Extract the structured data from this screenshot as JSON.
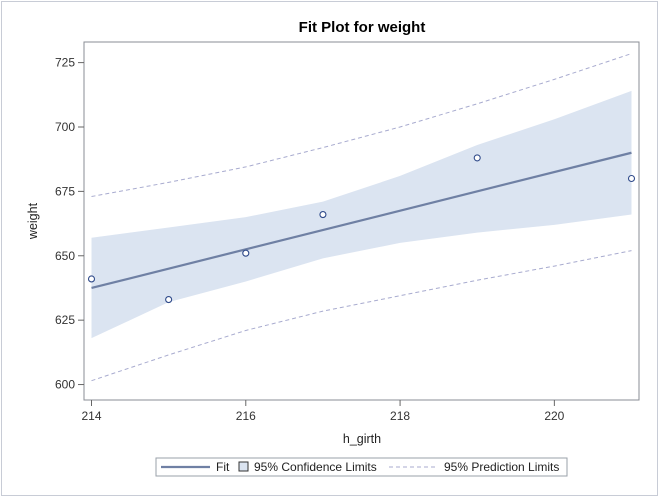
{
  "chart_data": {
    "type": "scatter",
    "title": "Fit Plot for weight",
    "xlabel": "h_girth",
    "ylabel": "weight",
    "xlim": [
      214,
      221
    ],
    "ylim": [
      594,
      733
    ],
    "x_ticks": [
      214,
      216,
      218,
      220
    ],
    "y_ticks": [
      600,
      625,
      650,
      675,
      700,
      725
    ],
    "observations": {
      "x": [
        214,
        215,
        216,
        217,
        219,
        221
      ],
      "y": [
        641,
        633,
        651,
        666,
        688,
        680
      ]
    },
    "fit": {
      "x": [
        214,
        221
      ],
      "y": [
        637.5,
        690
      ]
    },
    "confidence_limits": {
      "x": [
        214,
        215,
        216,
        217,
        218,
        219,
        220,
        221
      ],
      "lower": [
        618,
        632,
        640,
        649,
        655,
        659,
        662,
        666
      ],
      "upper": [
        657,
        661,
        665,
        671,
        681,
        693,
        703,
        714
      ]
    },
    "prediction_limits": {
      "x": [
        214,
        215,
        216,
        217,
        218,
        219,
        220,
        221
      ],
      "lower": [
        601.5,
        611.5,
        621,
        628.5,
        634.5,
        640.5,
        646,
        652
      ],
      "upper": [
        673,
        678.5,
        684.5,
        692,
        700,
        709,
        718.5,
        728.5
      ]
    },
    "legend": {
      "position": "bottom",
      "items": [
        "Fit",
        "95% Confidence Limits",
        "95% Prediction Limits"
      ]
    },
    "colors": {
      "fit": "#6f80a4",
      "band": "#dbe4f1",
      "points": "#2f4a8a",
      "prediction": "#a8abcf"
    }
  }
}
